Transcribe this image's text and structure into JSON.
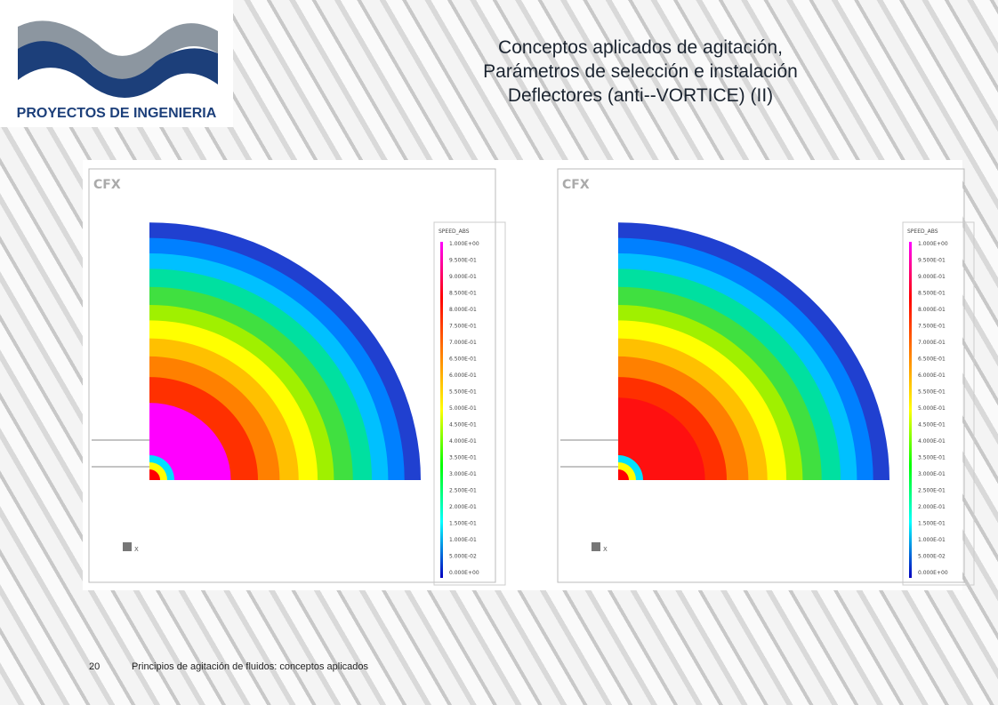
{
  "header": {
    "logo_text": "PROYECTOS DE INGENIERIA",
    "title_lines": [
      "Conceptos aplicados de agitación,",
      "Parámetros de selección e instalación",
      "Deflectores (anti--VORTICE) (II)"
    ]
  },
  "panels": [
    {
      "logo": "CFX",
      "legend_title": "SPEED_ABS",
      "legend_labels": [
        "1.000E+00",
        "9.500E-01",
        "9.000E-01",
        "8.500E-01",
        "8.000E-01",
        "7.500E-01",
        "7.000E-01",
        "6.500E-01",
        "6.000E-01",
        "5.500E-01",
        "5.000E-01",
        "4.500E-01",
        "4.000E-01",
        "3.500E-01",
        "3.000E-01",
        "2.500E-01",
        "2.000E-01",
        "1.500E-01",
        "1.000E-01",
        "5.000E-02",
        "0.000E+00"
      ],
      "axis_label": "X"
    },
    {
      "logo": "CFX",
      "legend_title": "SPEED_ABS",
      "legend_labels": [
        "1.000E+00",
        "9.500E-01",
        "9.000E-01",
        "8.500E-01",
        "8.000E-01",
        "7.500E-01",
        "7.000E-01",
        "6.500E-01",
        "6.000E-01",
        "5.500E-01",
        "5.000E-01",
        "4.500E-01",
        "4.000E-01",
        "3.500E-01",
        "3.000E-01",
        "2.500E-01",
        "2.000E-01",
        "1.500E-01",
        "1.000E-01",
        "5.000E-02",
        "0.000E+00"
      ],
      "axis_label": "X"
    }
  ],
  "footer": {
    "page_number": "20",
    "text": "Principios de agitación de fluidos: conceptos aplicados"
  }
}
